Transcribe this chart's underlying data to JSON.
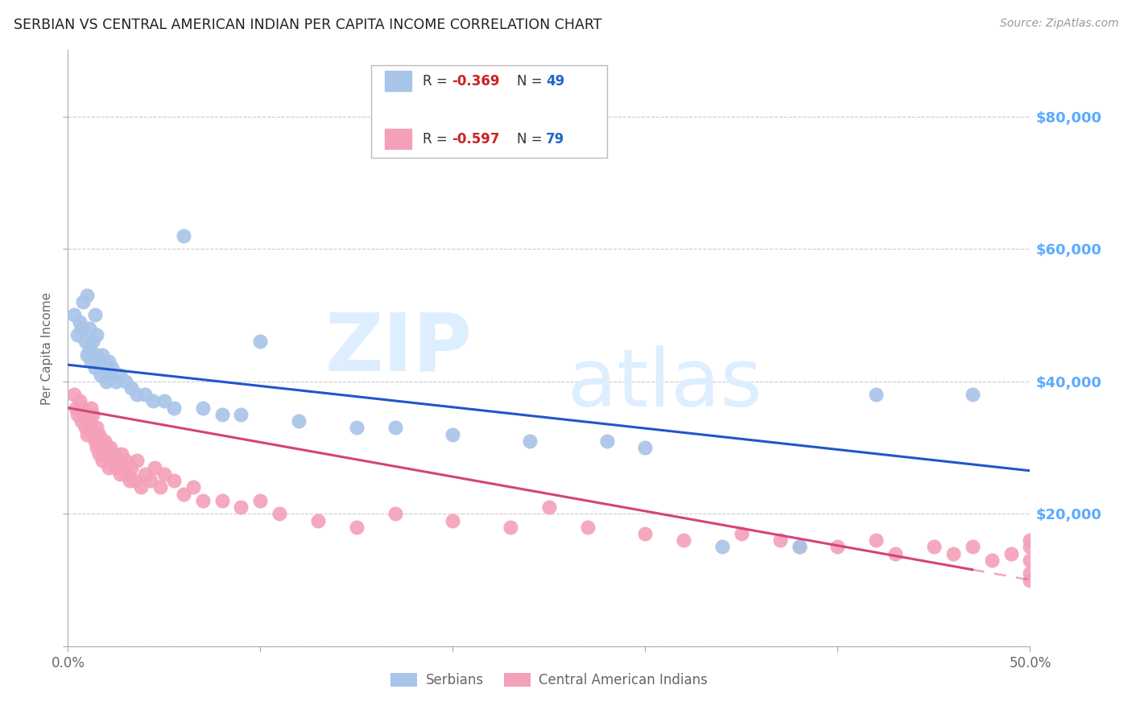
{
  "title": "SERBIAN VS CENTRAL AMERICAN INDIAN PER CAPITA INCOME CORRELATION CHART",
  "source": "Source: ZipAtlas.com",
  "ylabel": "Per Capita Income",
  "xlim": [
    0.0,
    0.5
  ],
  "ylim": [
    0,
    90000
  ],
  "yticks": [
    0,
    20000,
    40000,
    60000,
    80000
  ],
  "ytick_labels": [
    "",
    "$20,000",
    "$40,000",
    "$60,000",
    "$80,000"
  ],
  "ytick_color": "#5aabff",
  "background_color": "#ffffff",
  "grid_color": "#cccccc",
  "serbian_color": "#a8c4e8",
  "serbian_line_color": "#2255cc",
  "central_american_color": "#f4a0b8",
  "central_american_line_color": "#d44477",
  "legend_label1": "Serbians",
  "legend_label2": "Central American Indians",
  "serbian_x": [
    0.003,
    0.005,
    0.006,
    0.007,
    0.008,
    0.009,
    0.01,
    0.01,
    0.011,
    0.011,
    0.012,
    0.013,
    0.014,
    0.014,
    0.015,
    0.015,
    0.016,
    0.017,
    0.018,
    0.019,
    0.02,
    0.021,
    0.022,
    0.023,
    0.025,
    0.027,
    0.03,
    0.033,
    0.036,
    0.04,
    0.044,
    0.05,
    0.055,
    0.06,
    0.07,
    0.08,
    0.09,
    0.1,
    0.12,
    0.15,
    0.17,
    0.2,
    0.24,
    0.28,
    0.3,
    0.34,
    0.38,
    0.42,
    0.47
  ],
  "serbian_y": [
    50000,
    47000,
    49000,
    48000,
    52000,
    46000,
    44000,
    53000,
    45000,
    48000,
    43000,
    46000,
    50000,
    42000,
    44000,
    47000,
    43000,
    41000,
    44000,
    42000,
    40000,
    43000,
    41000,
    42000,
    40000,
    41000,
    40000,
    39000,
    38000,
    38000,
    37000,
    37000,
    36000,
    62000,
    36000,
    35000,
    35000,
    46000,
    34000,
    33000,
    33000,
    32000,
    31000,
    31000,
    30000,
    15000,
    15000,
    38000,
    38000
  ],
  "central_american_x": [
    0.003,
    0.004,
    0.005,
    0.006,
    0.007,
    0.008,
    0.009,
    0.01,
    0.01,
    0.011,
    0.012,
    0.012,
    0.013,
    0.013,
    0.014,
    0.015,
    0.015,
    0.016,
    0.016,
    0.017,
    0.018,
    0.018,
    0.019,
    0.02,
    0.021,
    0.021,
    0.022,
    0.023,
    0.024,
    0.025,
    0.026,
    0.027,
    0.028,
    0.029,
    0.03,
    0.031,
    0.032,
    0.033,
    0.035,
    0.036,
    0.038,
    0.04,
    0.043,
    0.045,
    0.048,
    0.05,
    0.055,
    0.06,
    0.065,
    0.07,
    0.08,
    0.09,
    0.1,
    0.11,
    0.13,
    0.15,
    0.17,
    0.2,
    0.23,
    0.25,
    0.27,
    0.3,
    0.32,
    0.35,
    0.37,
    0.38,
    0.4,
    0.42,
    0.43,
    0.45,
    0.46,
    0.47,
    0.48,
    0.49,
    0.5,
    0.5,
    0.5,
    0.5,
    0.5
  ],
  "central_american_y": [
    38000,
    36000,
    35000,
    37000,
    34000,
    36000,
    33000,
    35000,
    32000,
    34000,
    36000,
    33000,
    32000,
    35000,
    31000,
    33000,
    30000,
    32000,
    29000,
    31000,
    30000,
    28000,
    31000,
    30000,
    29000,
    27000,
    30000,
    28000,
    29000,
    27000,
    28000,
    26000,
    29000,
    27000,
    28000,
    26000,
    25000,
    27000,
    25000,
    28000,
    24000,
    26000,
    25000,
    27000,
    24000,
    26000,
    25000,
    23000,
    24000,
    22000,
    22000,
    21000,
    22000,
    20000,
    19000,
    18000,
    20000,
    19000,
    18000,
    21000,
    18000,
    17000,
    16000,
    17000,
    16000,
    15000,
    15000,
    16000,
    14000,
    15000,
    14000,
    15000,
    13000,
    14000,
    16000,
    15000,
    13000,
    10000,
    11000
  ]
}
